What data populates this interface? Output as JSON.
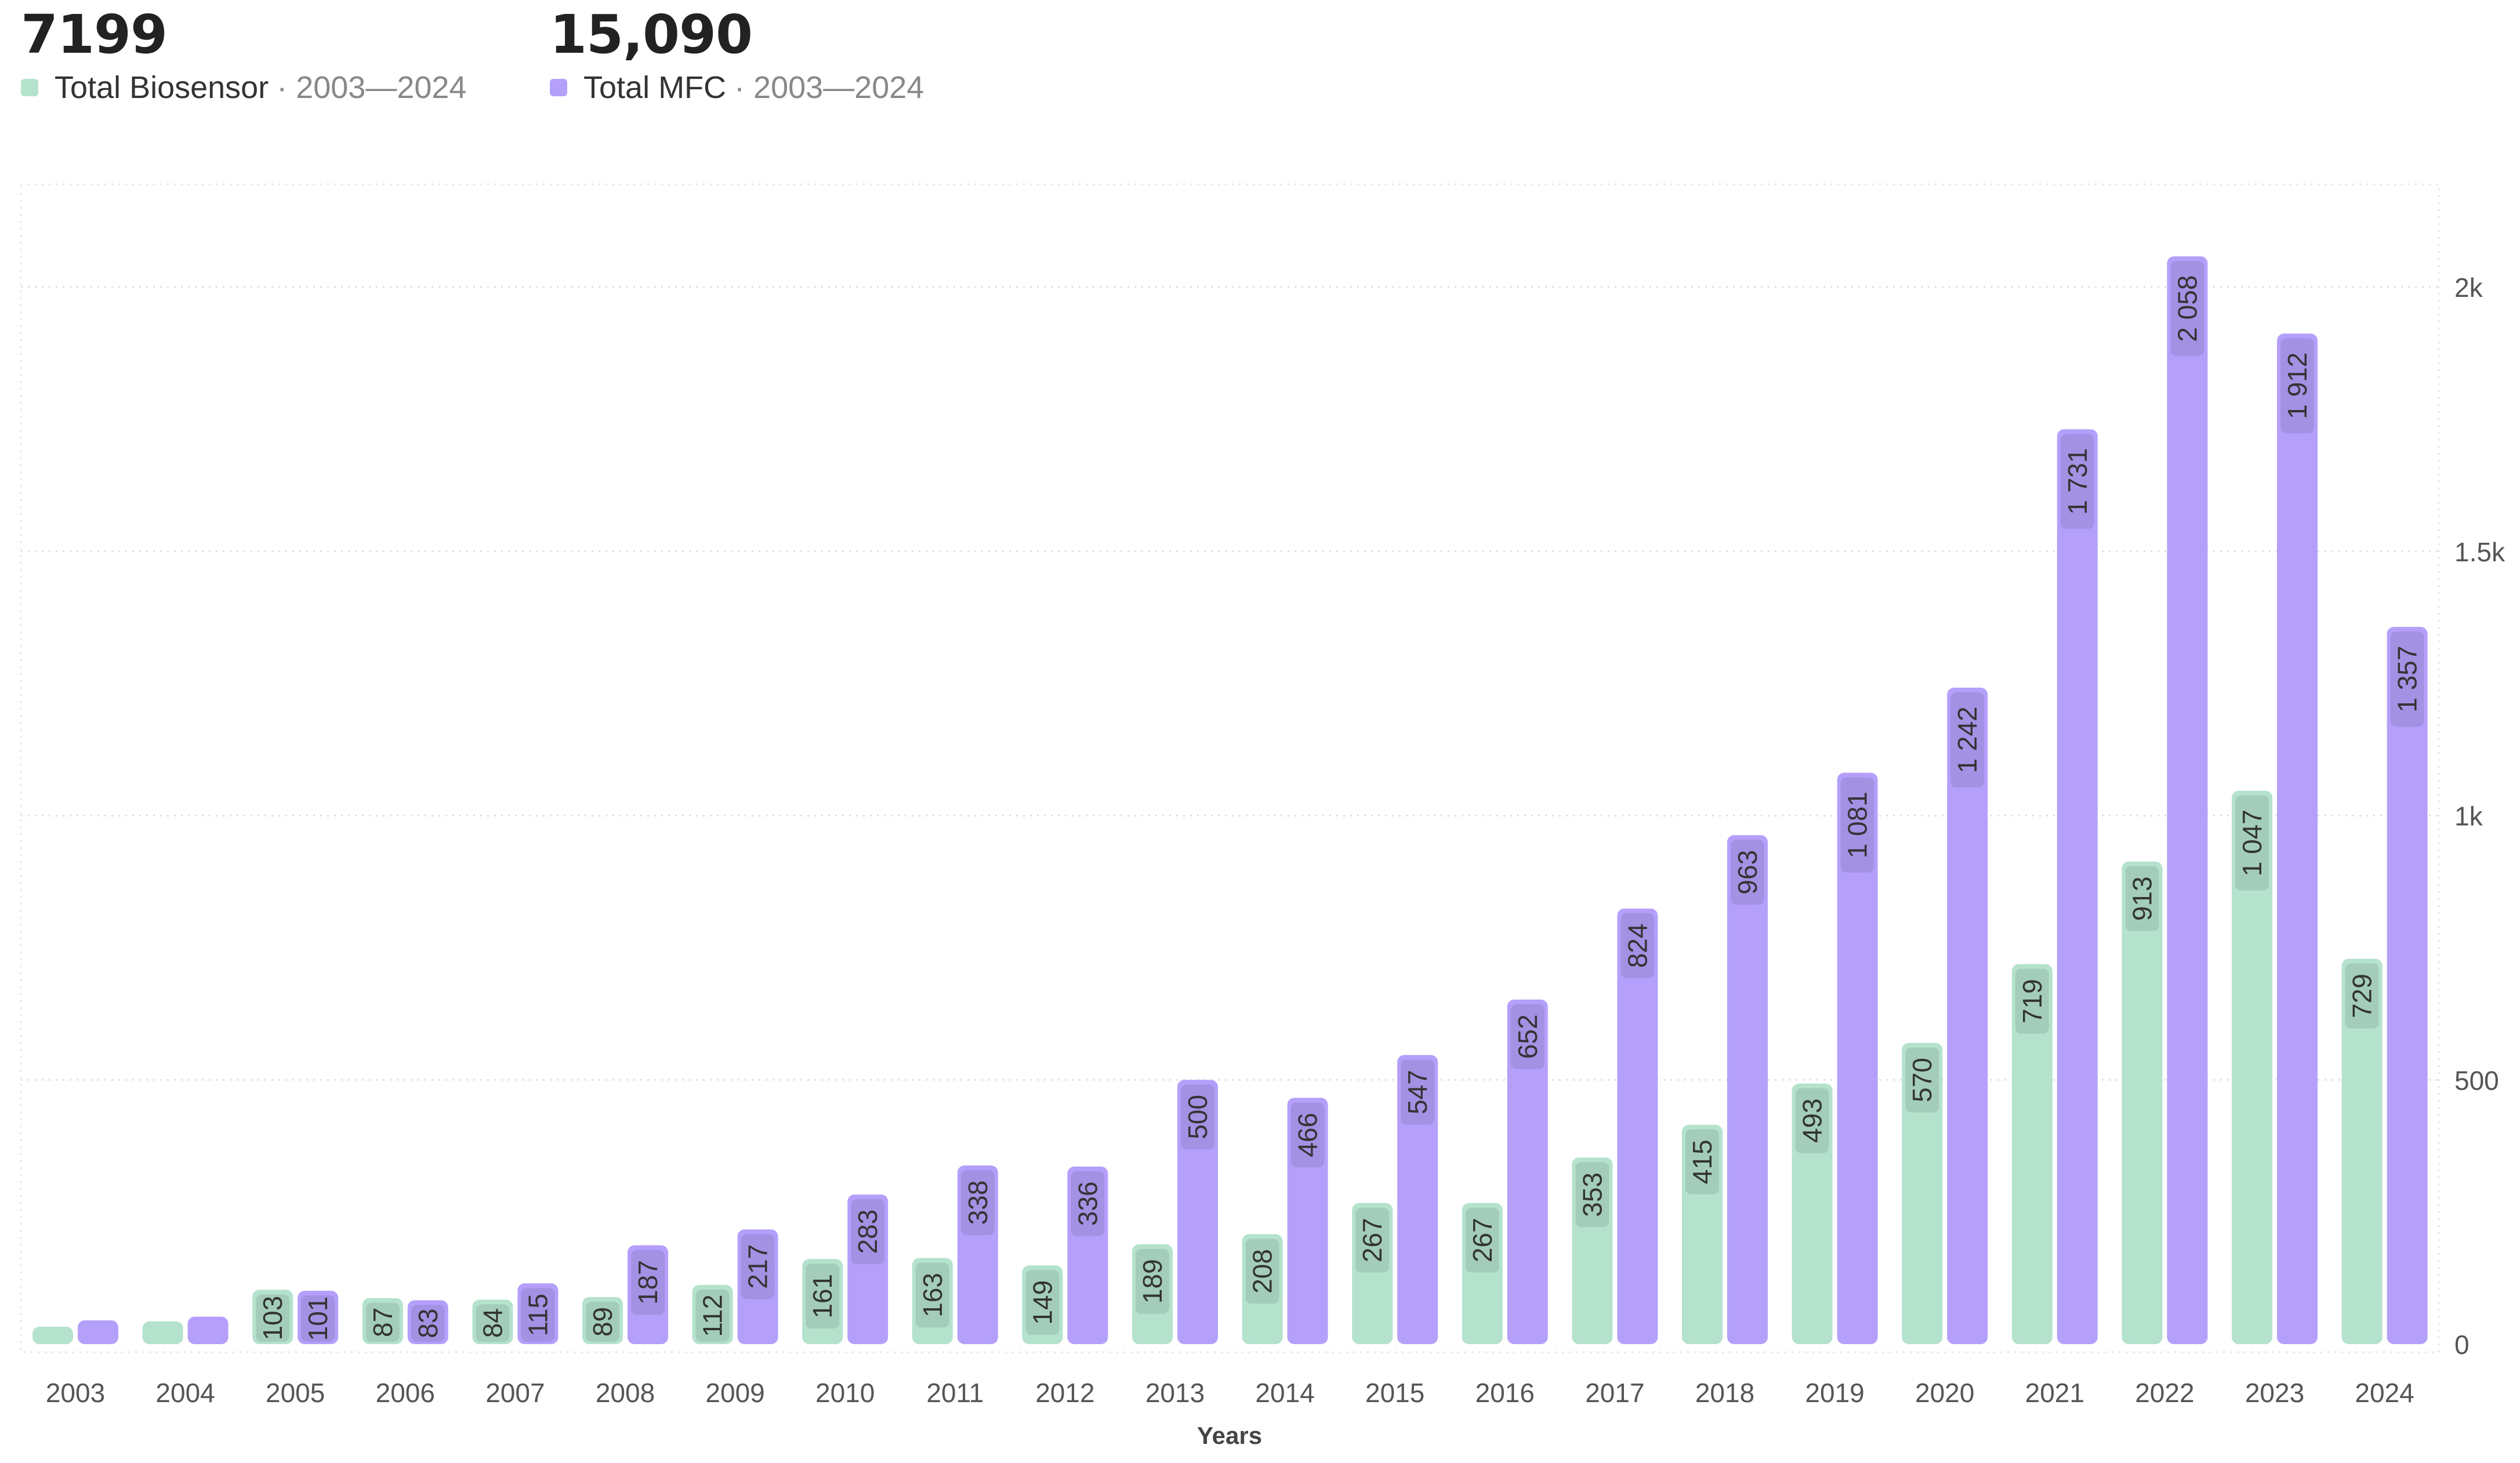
{
  "kpis": [
    {
      "value": "7199",
      "label": "Total Biosensor",
      "range": "· 2003—2024",
      "color": "#b4e2cd"
    },
    {
      "value": "15,090",
      "label": "Total MFC",
      "range": "· 2003—2024",
      "color": "#b4a0fb"
    }
  ],
  "chart_data": {
    "type": "bar",
    "xlabel": "Years",
    "ylabel": "",
    "ylim": [
      0,
      2200
    ],
    "yticks": [
      0,
      500,
      1000,
      1500,
      2000
    ],
    "ytick_labels": [
      "0",
      "500",
      "1k",
      "1.5k",
      "2k"
    ],
    "y_axis_position": "right",
    "grid": true,
    "categories": [
      "2003",
      "2004",
      "2005",
      "2006",
      "2007",
      "2008",
      "2009",
      "2010",
      "2011",
      "2012",
      "2013",
      "2014",
      "2015",
      "2016",
      "2017",
      "2018",
      "2019",
      "2020",
      "2021",
      "2022",
      "2023",
      "2024"
    ],
    "series": [
      {
        "name": "Total Biosensor",
        "color": "#b4e2cd",
        "values": [
          33,
          43,
          103,
          87,
          84,
          89,
          112,
          161,
          163,
          149,
          189,
          208,
          267,
          267,
          353,
          415,
          493,
          570,
          719,
          913,
          1047,
          729
        ],
        "labels": [
          "",
          "",
          "103",
          "87",
          "84",
          "89",
          "112",
          "161",
          "163",
          "149",
          "189",
          "208",
          "267",
          "267",
          "353",
          "415",
          "493",
          "570",
          "719",
          "913",
          "1 047",
          "729"
        ]
      },
      {
        "name": "Total MFC",
        "color": "#b4a0fb",
        "values": [
          45,
          52,
          101,
          83,
          115,
          187,
          217,
          283,
          338,
          336,
          500,
          466,
          547,
          652,
          824,
          963,
          1081,
          1242,
          1731,
          2058,
          1912,
          1357
        ],
        "labels": [
          "",
          "",
          "101",
          "83",
          "115",
          "187",
          "217",
          "283",
          "338",
          "336",
          "500",
          "466",
          "547",
          "652",
          "824",
          "963",
          "1 081",
          "1 242",
          "1 731",
          "2 058",
          "1 912",
          "1 357"
        ]
      }
    ]
  }
}
